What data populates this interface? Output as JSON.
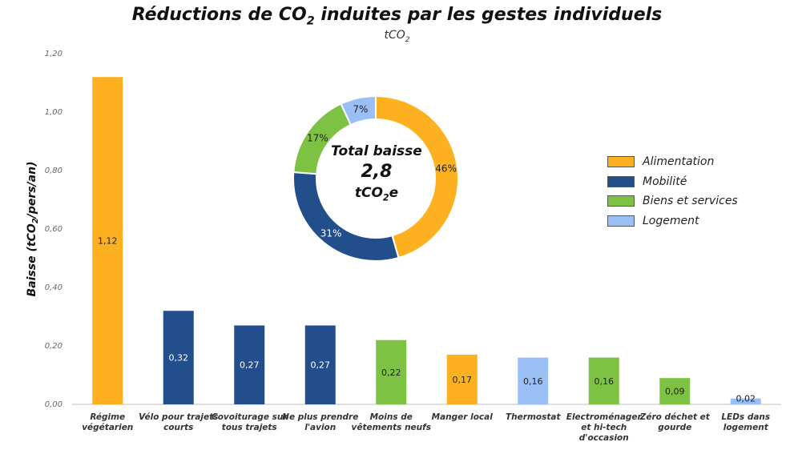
{
  "title": {
    "prefix": "Réductions de CO",
    "sub": "2",
    "suffix": " induites par les gestes individuels"
  },
  "subtitle": {
    "prefix": "tCO",
    "sub": "2"
  },
  "ylabel": {
    "prefix": "Baisse (tCO",
    "sub": "2",
    "suffix": "/pers/an)"
  },
  "colors": {
    "Alimentation": "#FDB120",
    "Mobilité": "#234E8C",
    "Biens et services": "#7DC242",
    "Logement": "#9ABFF5"
  },
  "legend": [
    "Alimentation",
    "Mobilité",
    "Biens et services",
    "Logement"
  ],
  "donut_center": {
    "line1": "Total baisse",
    "line2": "2,8",
    "line3_prefix": "tCO",
    "line3_sub": "2",
    "line3_suffix": "e"
  },
  "chart_data": [
    {
      "type": "bar",
      "ylim": [
        0,
        1.2
      ],
      "yticks": [
        "0,00",
        "0,20",
        "0,40",
        "0,60",
        "0,80",
        "1,00",
        "1,20"
      ],
      "categories": [
        [
          "Régime",
          "végétarien"
        ],
        [
          "Vélo pour trajets",
          "courts"
        ],
        [
          "Covoiturage sur",
          "tous trajets"
        ],
        [
          "Ne plus prendre",
          "l'avion"
        ],
        [
          "Moins de",
          "vêtements neufs"
        ],
        [
          "Manger local"
        ],
        [
          "Thermostat"
        ],
        [
          "Electroménager",
          "et hi-tech",
          "d'occasion"
        ],
        [
          "Zéro déchet et",
          "gourde"
        ],
        [
          "LEDs dans",
          "logement"
        ]
      ],
      "values": [
        1.12,
        0.32,
        0.27,
        0.27,
        0.22,
        0.17,
        0.16,
        0.16,
        0.09,
        0.02
      ],
      "labels": [
        "1,12",
        "0,32",
        "0,27",
        "0,27",
        "0,22",
        "0,17",
        "0,16",
        "0,16",
        "0,09",
        "0,02"
      ],
      "groups": [
        "Alimentation",
        "Mobilité",
        "Mobilité",
        "Mobilité",
        "Biens et services",
        "Alimentation",
        "Logement",
        "Biens et services",
        "Biens et services",
        "Logement"
      ]
    },
    {
      "type": "pie",
      "slices": [
        {
          "name": "Alimentation",
          "value": 46,
          "label": "46%"
        },
        {
          "name": "Mobilité",
          "value": 31,
          "label": "31%"
        },
        {
          "name": "Biens et services",
          "value": 17,
          "label": "17%"
        },
        {
          "name": "Logement",
          "value": 7,
          "label": "7%"
        }
      ]
    }
  ]
}
